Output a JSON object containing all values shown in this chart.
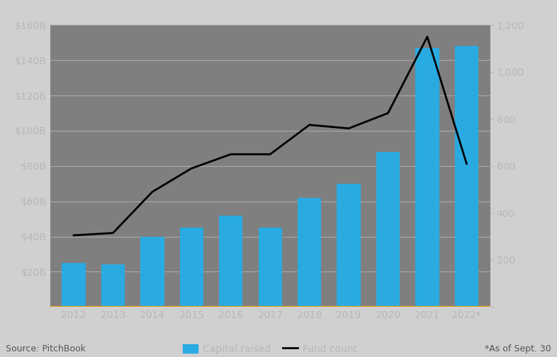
{
  "years": [
    "2012",
    "2013",
    "2014",
    "2015",
    "2016",
    "2017",
    "2018",
    "2019",
    "2020",
    "2021",
    "2022*"
  ],
  "capital_raised": [
    25,
    24,
    40,
    45,
    52,
    45,
    62,
    70,
    88,
    147,
    148
  ],
  "fund_count": [
    305,
    315,
    490,
    590,
    650,
    650,
    775,
    760,
    825,
    1150,
    610
  ],
  "bar_color": "#29ABE2",
  "line_color": "#000000",
  "background_color": "#7f7f7f",
  "plot_bg_color": "#7f7f7f",
  "outer_bg_color": "#d0d0d0",
  "grid_color": "#aaaaaa",
  "axis_label_color": "#b8b8b8",
  "orange_line_color": "#E8A020",
  "left_ylim": [
    0,
    160
  ],
  "left_yticks": [
    0,
    20,
    40,
    60,
    80,
    100,
    120,
    140,
    160
  ],
  "left_yticklabels": [
    "",
    "$20B",
    "$40B",
    "$60B",
    "$80B",
    "$100B",
    "$120B",
    "$140B",
    "$160B"
  ],
  "right_ylim": [
    0,
    1200
  ],
  "right_yticks": [
    0,
    200,
    400,
    600,
    800,
    1000,
    1200
  ],
  "right_yticklabels": [
    "",
    "200",
    "400",
    "600",
    "800",
    "1,000",
    "1,200"
  ],
  "legend_capital": "Capital raised",
  "legend_fund": "Fund count",
  "source_text": "Source: PitchBook",
  "note_text": "*As of Sept. 30",
  "tick_fontsize": 10,
  "legend_fontsize": 10,
  "source_fontsize": 9
}
